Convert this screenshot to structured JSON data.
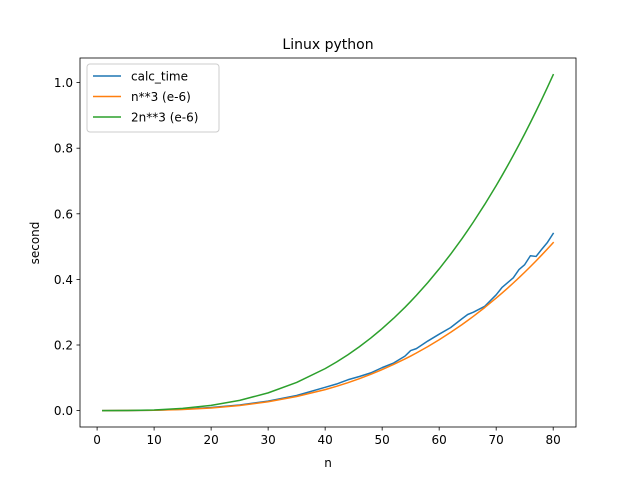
{
  "chart_data": {
    "type": "line",
    "title": "Linux python",
    "xlabel": "n",
    "ylabel": "second",
    "xlim": [
      -3,
      84
    ],
    "ylim": [
      -0.05,
      1.075
    ],
    "xticks": [
      0,
      10,
      20,
      30,
      40,
      50,
      60,
      70,
      80
    ],
    "xtick_labels": [
      "0",
      "10",
      "20",
      "30",
      "40",
      "50",
      "60",
      "70",
      "80"
    ],
    "yticks": [
      0.0,
      0.2,
      0.4,
      0.6,
      0.8,
      1.0
    ],
    "ytick_labels": [
      "0.0",
      "0.2",
      "0.4",
      "0.6",
      "0.8",
      "1.0"
    ],
    "grid": false,
    "legend_position": "top-left",
    "x": [
      1,
      5,
      10,
      15,
      20,
      25,
      30,
      35,
      40,
      42,
      44,
      46,
      48,
      50,
      52,
      54,
      55,
      56,
      58,
      60,
      62,
      64,
      65,
      66,
      68,
      70,
      71,
      72,
      73,
      74,
      75,
      76,
      77,
      78,
      79,
      80
    ],
    "series": [
      {
        "name": "calc_time",
        "color": "#1f77b4",
        "values": [
          0.0,
          0.0002,
          0.0012,
          0.004,
          0.0095,
          0.017,
          0.029,
          0.046,
          0.071,
          0.081,
          0.094,
          0.104,
          0.115,
          0.131,
          0.145,
          0.166,
          0.183,
          0.189,
          0.212,
          0.233,
          0.253,
          0.28,
          0.293,
          0.3,
          0.318,
          0.353,
          0.375,
          0.39,
          0.405,
          0.43,
          0.445,
          0.472,
          0.47,
          0.492,
          0.513,
          0.54
        ]
      },
      {
        "name": "n**3 (e-6)",
        "color": "#ff7f0e",
        "values": [
          1e-06,
          0.000125,
          0.001,
          0.003375,
          0.008,
          0.015625,
          0.027,
          0.042875,
          0.064,
          0.074088,
          0.085184,
          0.097336,
          0.110592,
          0.125,
          0.140608,
          0.157464,
          0.166375,
          0.175616,
          0.195112,
          0.216,
          0.238328,
          0.262144,
          0.274625,
          0.287496,
          0.314432,
          0.343,
          0.357911,
          0.373248,
          0.389017,
          0.405224,
          0.421875,
          0.438976,
          0.456533,
          0.474552,
          0.493039,
          0.512
        ]
      },
      {
        "name": "2n**3 (e-6)",
        "color": "#2ca02c",
        "values": [
          2e-06,
          0.00025,
          0.002,
          0.00675,
          0.016,
          0.03125,
          0.054,
          0.08575,
          0.128,
          0.148176,
          0.170368,
          0.194672,
          0.221184,
          0.25,
          0.281216,
          0.314928,
          0.33275,
          0.351232,
          0.390224,
          0.432,
          0.476656,
          0.524288,
          0.54925,
          0.574992,
          0.628864,
          0.686,
          0.715822,
          0.746496,
          0.778034,
          0.810448,
          0.84375,
          0.877952,
          0.913066,
          0.949104,
          0.986078,
          1.024
        ]
      }
    ]
  }
}
